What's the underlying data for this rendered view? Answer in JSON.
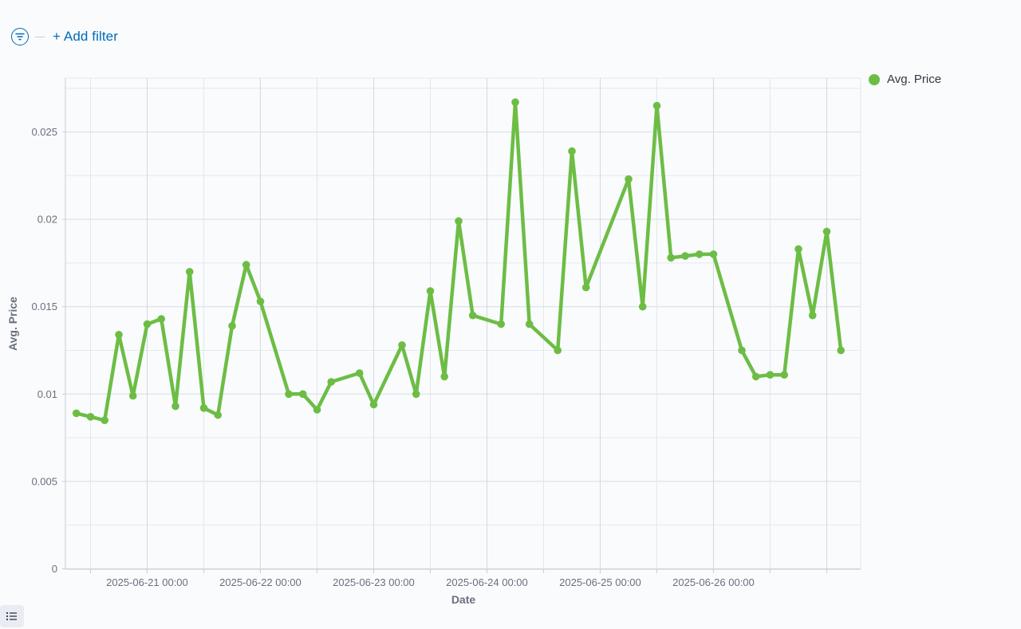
{
  "filter_bar": {
    "add_filter_label": "+ Add filter",
    "filter_icon": "filter-icon"
  },
  "legend": {
    "label": "Avg. Price",
    "color": "#6dbd45"
  },
  "icons": {
    "list_toggle": "list-icon"
  },
  "chart_data": {
    "type": "line",
    "xlabel": "Date",
    "ylabel": "Avg. Price",
    "ylim": [
      0,
      0.028
    ],
    "x_tick_labels": [
      "2025-06-21 00:00",
      "2025-06-22 00:00",
      "2025-06-23 00:00",
      "2025-06-24 00:00",
      "2025-06-25 00:00",
      "2025-06-26 00:00"
    ],
    "y_tick_labels": [
      "0",
      "0.005",
      "0.01",
      "0.015",
      "0.02",
      "0.025"
    ],
    "grid": true,
    "legend_position": "top-right",
    "series": [
      {
        "name": "Avg. Price",
        "color": "#6dbd45",
        "points": [
          [
            "2025-06-20 09:00",
            0.0089
          ],
          [
            "2025-06-20 12:00",
            0.0087
          ],
          [
            "2025-06-20 15:00",
            0.0085
          ],
          [
            "2025-06-20 18:00",
            0.0134
          ],
          [
            "2025-06-20 21:00",
            0.0099
          ],
          [
            "2025-06-21 00:00",
            0.014
          ],
          [
            "2025-06-21 03:00",
            0.0143
          ],
          [
            "2025-06-21 06:00",
            0.0093
          ],
          [
            "2025-06-21 09:00",
            0.017
          ],
          [
            "2025-06-21 12:00",
            0.0092
          ],
          [
            "2025-06-21 15:00",
            0.0088
          ],
          [
            "2025-06-21 18:00",
            0.0139
          ],
          [
            "2025-06-21 21:00",
            0.0174
          ],
          [
            "2025-06-22 00:00",
            0.0153
          ],
          [
            "2025-06-22 06:00",
            0.01
          ],
          [
            "2025-06-22 09:00",
            0.01
          ],
          [
            "2025-06-22 12:00",
            0.0091
          ],
          [
            "2025-06-22 15:00",
            0.0107
          ],
          [
            "2025-06-22 21:00",
            0.0112
          ],
          [
            "2025-06-23 00:00",
            0.0094
          ],
          [
            "2025-06-23 06:00",
            0.0128
          ],
          [
            "2025-06-23 09:00",
            0.01
          ],
          [
            "2025-06-23 12:00",
            0.0159
          ],
          [
            "2025-06-23 15:00",
            0.011
          ],
          [
            "2025-06-23 18:00",
            0.0199
          ],
          [
            "2025-06-23 21:00",
            0.0145
          ],
          [
            "2025-06-24 03:00",
            0.014
          ],
          [
            "2025-06-24 06:00",
            0.0267
          ],
          [
            "2025-06-24 09:00",
            0.014
          ],
          [
            "2025-06-24 15:00",
            0.0125
          ],
          [
            "2025-06-24 18:00",
            0.0239
          ],
          [
            "2025-06-24 21:00",
            0.0161
          ],
          [
            "2025-06-25 06:00",
            0.0223
          ],
          [
            "2025-06-25 09:00",
            0.015
          ],
          [
            "2025-06-25 12:00",
            0.0265
          ],
          [
            "2025-06-25 15:00",
            0.0178
          ],
          [
            "2025-06-25 18:00",
            0.0179
          ],
          [
            "2025-06-25 21:00",
            0.018
          ],
          [
            "2025-06-26 00:00",
            0.018
          ],
          [
            "2025-06-26 06:00",
            0.0125
          ],
          [
            "2025-06-26 09:00",
            0.011
          ],
          [
            "2025-06-26 12:00",
            0.0111
          ],
          [
            "2025-06-26 15:00",
            0.0111
          ],
          [
            "2025-06-26 18:00",
            0.0183
          ],
          [
            "2025-06-26 21:00",
            0.0145
          ],
          [
            "2025-06-27 00:00",
            0.0193
          ],
          [
            "2025-06-27 03:00",
            0.0125
          ]
        ]
      }
    ]
  }
}
